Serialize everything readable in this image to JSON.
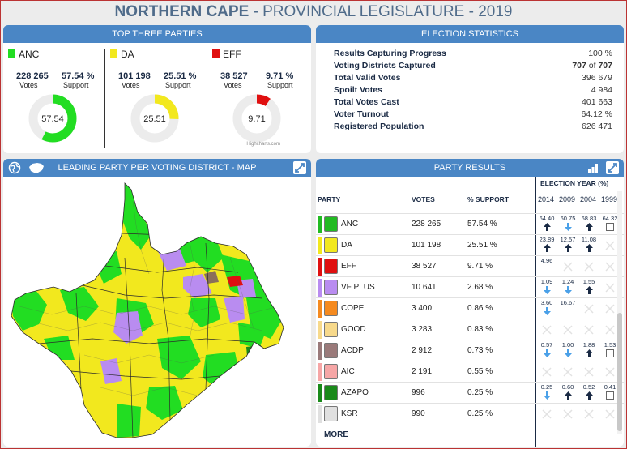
{
  "title": {
    "bold": "NORTHERN CAPE",
    "rest": "- PROVINCIAL LEGISLATURE - 2019"
  },
  "top_three": {
    "heading": "TOP THREE PARTIES",
    "credit": "Highcharts.com",
    "parties": [
      {
        "name": "ANC",
        "votes": "228 265",
        "votes_label": "Votes",
        "support": "57.54 %",
        "support_label": "Support",
        "center": "57.54",
        "fraction": 0.5754,
        "color": "#22dd22"
      },
      {
        "name": "DA",
        "votes": "101 198",
        "votes_label": "Votes",
        "support": "25.51 %",
        "support_label": "Support",
        "center": "25.51",
        "fraction": 0.2551,
        "color": "#f2e81e"
      },
      {
        "name": "EFF",
        "votes": "38 527",
        "votes_label": "Votes",
        "support": "9.71 %",
        "support_label": "Support",
        "center": "9.71",
        "fraction": 0.0971,
        "color": "#e01010"
      }
    ]
  },
  "stats": {
    "heading": "ELECTION STATISTICS",
    "rows": [
      {
        "label": "Results Capturing Progress",
        "value": "100 %"
      },
      {
        "label": "Voting Districts Captured",
        "value_a": "707",
        "value_of": "of",
        "value_b": "707"
      },
      {
        "label": "Total Valid Votes",
        "value": "396 679"
      },
      {
        "label": "Spoilt Votes",
        "value": "4 984"
      },
      {
        "label": "Total Votes Cast",
        "value": "401 663"
      },
      {
        "label": "Voter Turnout",
        "value": "64.12 %"
      },
      {
        "label": "Registered Population",
        "value": "626 471"
      }
    ]
  },
  "map": {
    "heading": "LEADING PARTY PER VOTING DISTRICT - MAP"
  },
  "results": {
    "heading": "PARTY RESULTS",
    "col_party": "PARTY",
    "col_votes": "VOTES",
    "col_support": "% SUPPORT",
    "years_heading": "ELECTION YEAR (%)",
    "years": [
      "2014",
      "2009",
      "2004",
      "1999"
    ],
    "more": "MORE",
    "rows": [
      {
        "name": "ANC",
        "votes": "228 265",
        "support": "57.54 %",
        "color": "#22bb22",
        "hist": [
          {
            "v": "64.40",
            "d": "up"
          },
          {
            "v": "60.75",
            "d": "down"
          },
          {
            "v": "68.83",
            "d": "up"
          },
          {
            "v": "64.32",
            "d": "box"
          }
        ]
      },
      {
        "name": "DA",
        "votes": "101 198",
        "support": "25.51 %",
        "color": "#f2e81e",
        "hist": [
          {
            "v": "23.89",
            "d": "up"
          },
          {
            "v": "12.57",
            "d": "up"
          },
          {
            "v": "11.08",
            "d": "up"
          },
          {
            "v": "",
            "d": "x"
          }
        ]
      },
      {
        "name": "EFF",
        "votes": "38 527",
        "support": "9.71 %",
        "color": "#e01010",
        "hist": [
          {
            "v": "4.96",
            "d": "none"
          },
          {
            "v": "",
            "d": "x"
          },
          {
            "v": "",
            "d": "x"
          },
          {
            "v": "",
            "d": "x"
          }
        ]
      },
      {
        "name": "VF PLUS",
        "votes": "10 641",
        "support": "2.68 %",
        "color": "#b98cf0",
        "hist": [
          {
            "v": "1.09",
            "d": "down"
          },
          {
            "v": "1.24",
            "d": "down"
          },
          {
            "v": "1.55",
            "d": "up"
          },
          {
            "v": "",
            "d": "x"
          }
        ]
      },
      {
        "name": "COPE",
        "votes": "3 400",
        "support": "0.86 %",
        "color": "#f58a1f",
        "hist": [
          {
            "v": "3.60",
            "d": "down"
          },
          {
            "v": "16.67",
            "d": "none"
          },
          {
            "v": "",
            "d": "x"
          },
          {
            "v": "",
            "d": "x"
          }
        ]
      },
      {
        "name": "GOOD",
        "votes": "3 283",
        "support": "0.83 %",
        "color": "#f7d98b",
        "hist": [
          {
            "v": "",
            "d": "x"
          },
          {
            "v": "",
            "d": "x"
          },
          {
            "v": "",
            "d": "x"
          },
          {
            "v": "",
            "d": "x"
          }
        ]
      },
      {
        "name": "ACDP",
        "votes": "2 912",
        "support": "0.73 %",
        "color": "#9a7a7a",
        "hist": [
          {
            "v": "0.57",
            "d": "down"
          },
          {
            "v": "1.00",
            "d": "down"
          },
          {
            "v": "1.88",
            "d": "up"
          },
          {
            "v": "1.53",
            "d": "box"
          }
        ]
      },
      {
        "name": "AIC",
        "votes": "2 191",
        "support": "0.55 %",
        "color": "#f6a6a6",
        "hist": [
          {
            "v": "",
            "d": "x"
          },
          {
            "v": "",
            "d": "x"
          },
          {
            "v": "",
            "d": "x"
          },
          {
            "v": "",
            "d": "x"
          }
        ]
      },
      {
        "name": "AZAPO",
        "votes": "996",
        "support": "0.25 %",
        "color": "#1a8a1a",
        "hist": [
          {
            "v": "0.25",
            "d": "down"
          },
          {
            "v": "0.60",
            "d": "up"
          },
          {
            "v": "0.52",
            "d": "up"
          },
          {
            "v": "0.41",
            "d": "box"
          }
        ]
      },
      {
        "name": "KSR",
        "votes": "990",
        "support": "0.25 %",
        "color": "#e0e0e0",
        "hist": [
          {
            "v": "",
            "d": "x"
          },
          {
            "v": "",
            "d": "x"
          },
          {
            "v": "",
            "d": "x"
          },
          {
            "v": "",
            "d": "x"
          }
        ]
      }
    ]
  }
}
